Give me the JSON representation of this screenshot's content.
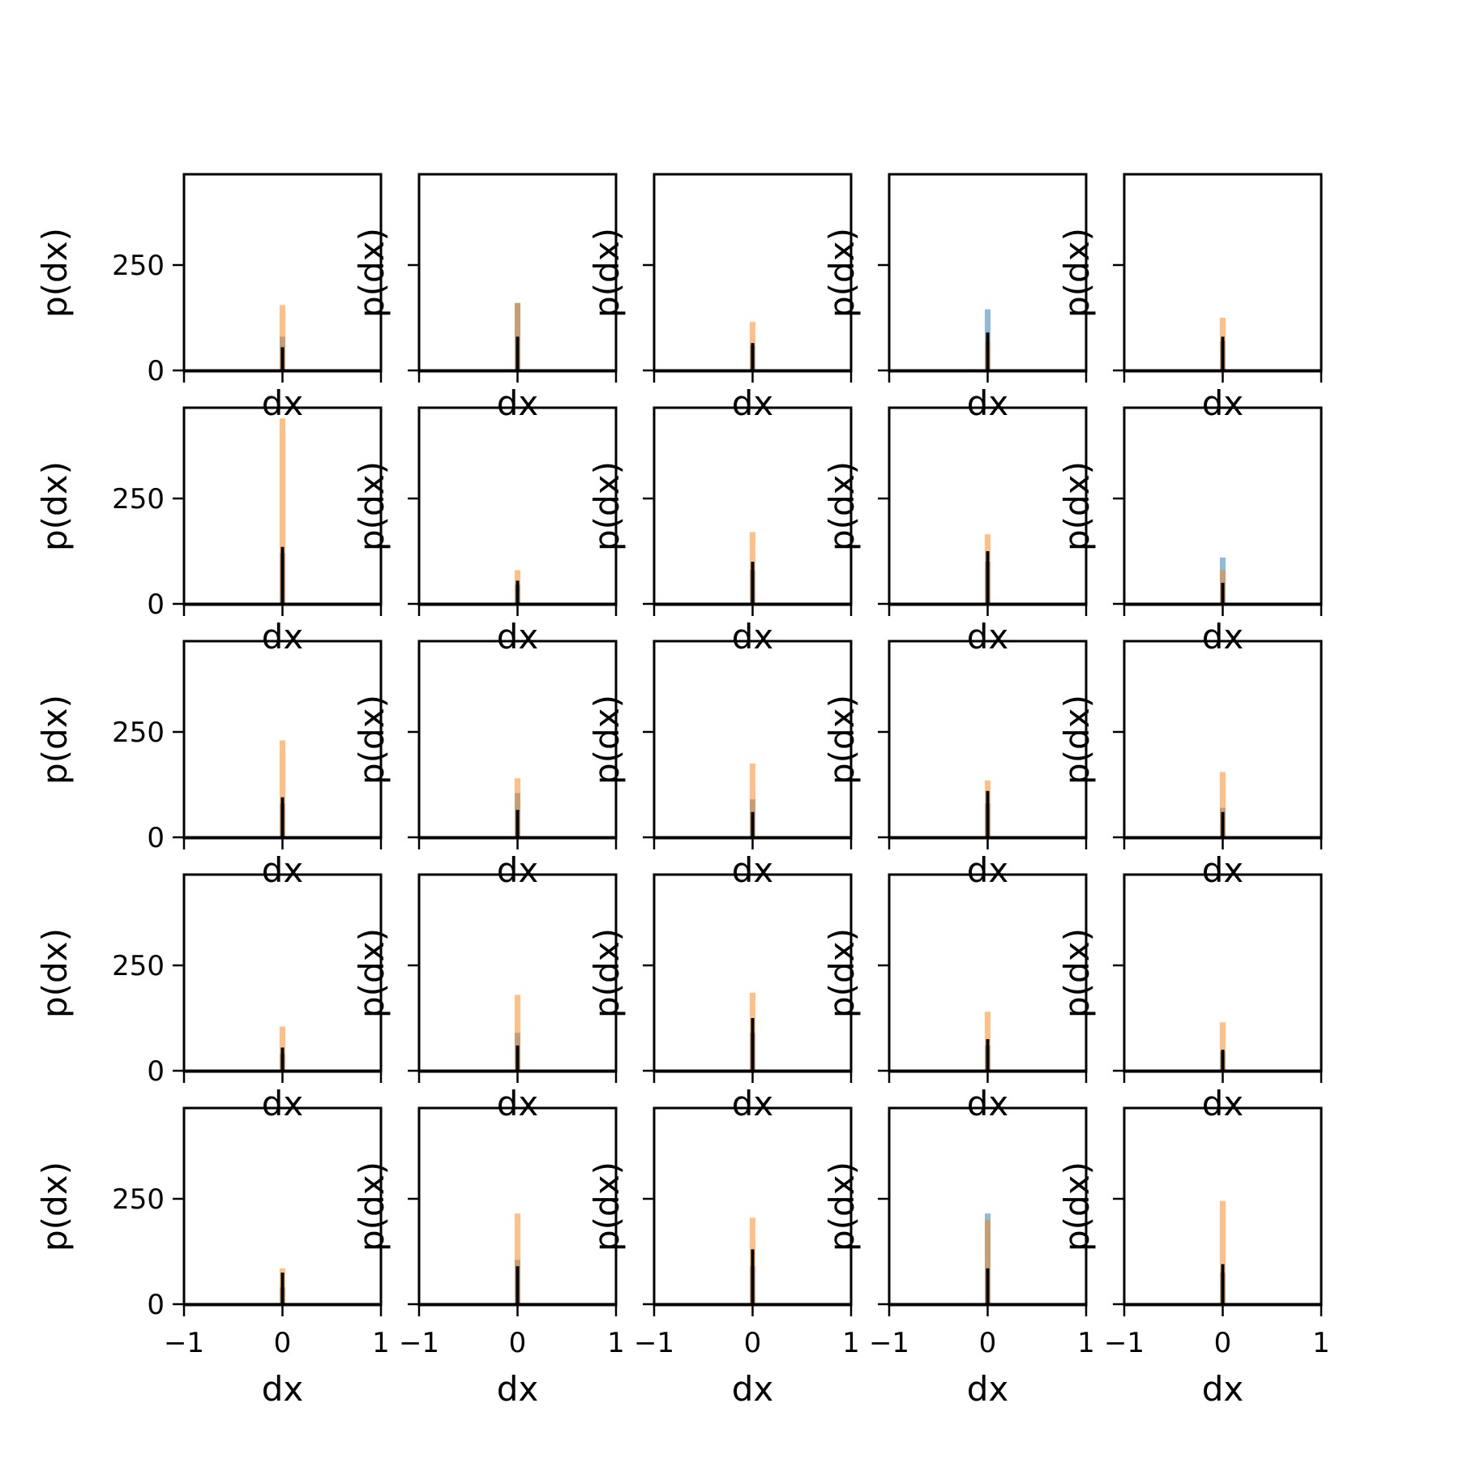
{
  "figure": {
    "layout": "5x5 grid of histograms"
  },
  "chart_data": {
    "type": "bar",
    "grid_rows": 5,
    "grid_cols": 5,
    "shared_axes": true,
    "xlabel": "dx",
    "ylabel": "p(dx)",
    "xlim": [
      -1,
      1
    ],
    "ylim": [
      0,
      450
    ],
    "x_ticks": [
      -1,
      0,
      1
    ],
    "x_tick_labels": [
      "−1",
      "0",
      "1"
    ],
    "y_ticks": [
      0,
      250
    ],
    "y_tick_labels": [
      "0",
      "250"
    ],
    "grid": false,
    "legend": "none",
    "series_colors": {
      "blue": "#1f77b4",
      "orange": "#ff7f0e",
      "black": "#000000"
    },
    "series_alpha": {
      "blue": 0.5,
      "orange": 0.5,
      "black": 1.0
    },
    "panels": [
      {
        "peak_blue": 80,
        "peak_orange": 155,
        "peak_black": 55
      },
      {
        "peak_blue": 160,
        "peak_orange": 160,
        "peak_black": 80
      },
      {
        "peak_blue": 60,
        "peak_orange": 115,
        "peak_black": 65
      },
      {
        "peak_blue": 145,
        "peak_orange": 70,
        "peak_black": 90
      },
      {
        "peak_blue": 70,
        "peak_orange": 125,
        "peak_black": 80
      },
      {
        "peak_blue": 120,
        "peak_orange": 440,
        "peak_black": 135
      },
      {
        "peak_blue": 45,
        "peak_orange": 80,
        "peak_black": 55
      },
      {
        "peak_blue": 80,
        "peak_orange": 170,
        "peak_black": 100
      },
      {
        "peak_blue": 100,
        "peak_orange": 165,
        "peak_black": 125
      },
      {
        "peak_blue": 110,
        "peak_orange": 80,
        "peak_black": 50
      },
      {
        "peak_blue": 80,
        "peak_orange": 230,
        "peak_black": 95
      },
      {
        "peak_blue": 105,
        "peak_orange": 140,
        "peak_black": 65
      },
      {
        "peak_blue": 90,
        "peak_orange": 175,
        "peak_black": 60
      },
      {
        "peak_blue": 80,
        "peak_orange": 135,
        "peak_black": 110
      },
      {
        "peak_blue": 70,
        "peak_orange": 155,
        "peak_black": 60
      },
      {
        "peak_blue": 40,
        "peak_orange": 105,
        "peak_black": 55
      },
      {
        "peak_blue": 90,
        "peak_orange": 180,
        "peak_black": 60
      },
      {
        "peak_blue": 90,
        "peak_orange": 185,
        "peak_black": 125
      },
      {
        "peak_blue": 60,
        "peak_orange": 140,
        "peak_black": 75
      },
      {
        "peak_blue": 45,
        "peak_orange": 115,
        "peak_black": 50
      },
      {
        "peak_blue": 40,
        "peak_orange": 85,
        "peak_black": 75
      },
      {
        "peak_blue": 105,
        "peak_orange": 215,
        "peak_black": 90
      },
      {
        "peak_blue": 90,
        "peak_orange": 205,
        "peak_black": 130
      },
      {
        "peak_blue": 215,
        "peak_orange": 200,
        "peak_black": 85
      },
      {
        "peak_blue": 75,
        "peak_orange": 245,
        "peak_black": 95
      }
    ]
  }
}
